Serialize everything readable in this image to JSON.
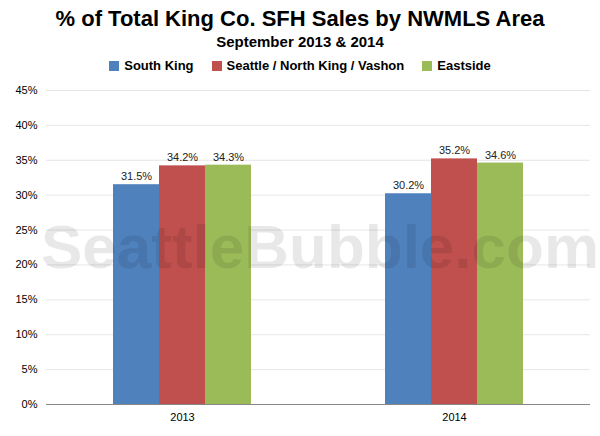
{
  "chart_data": {
    "type": "bar",
    "title": "% of Total King Co. SFH Sales by NWMLS Area",
    "subtitle": "September 2013 & 2014",
    "watermark": "SeattleBubble.com",
    "categories": [
      "2013",
      "2014"
    ],
    "series": [
      {
        "name": "South King",
        "color": "#4f81bd",
        "values": [
          31.5,
          30.2
        ],
        "value_labels": [
          "31.5%",
          "30.2%"
        ]
      },
      {
        "name": "Seattle / North King / Vashon",
        "color": "#c0504d",
        "values": [
          34.2,
          35.2
        ],
        "value_labels": [
          "34.2%",
          "35.2%"
        ]
      },
      {
        "name": "Eastside",
        "color": "#9bbb59",
        "values": [
          34.3,
          34.6
        ],
        "value_labels": [
          "34.3%",
          "34.6%"
        ]
      }
    ],
    "ylim": [
      0,
      45
    ],
    "yticks": [
      {
        "value": 0,
        "label": "0%"
      },
      {
        "value": 5,
        "label": "5%"
      },
      {
        "value": 10,
        "label": "10%"
      },
      {
        "value": 15,
        "label": "15%"
      },
      {
        "value": 20,
        "label": "20%"
      },
      {
        "value": 25,
        "label": "25%"
      },
      {
        "value": 30,
        "label": "30%"
      },
      {
        "value": 35,
        "label": "35%"
      },
      {
        "value": 40,
        "label": "40%"
      },
      {
        "value": 45,
        "label": "45%"
      }
    ],
    "grid": true,
    "legend": "top",
    "data_labels": true
  }
}
